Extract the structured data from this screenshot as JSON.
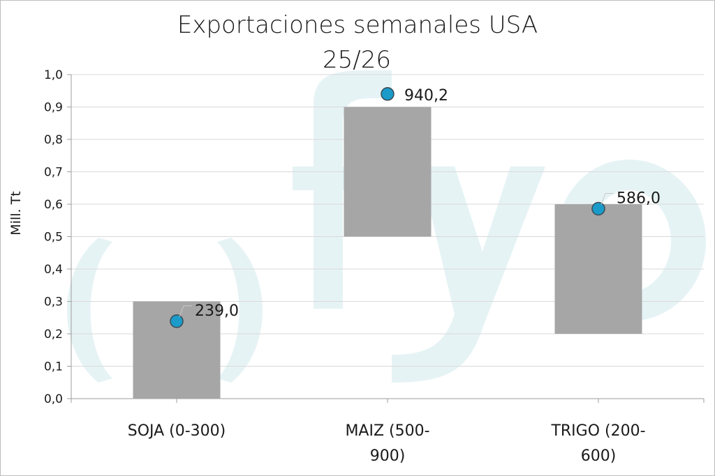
{
  "chart_data": {
    "type": "bar",
    "title": "Exportaciones semanales USA",
    "subtitle": "25/26",
    "ylabel": "Mill. Tt",
    "ylim": [
      0,
      1.0
    ],
    "yticks": [
      "0,0",
      "0,1",
      "0,2",
      "0,3",
      "0,4",
      "0,5",
      "0,6",
      "0,7",
      "0,8",
      "0,9",
      "1,0"
    ],
    "grid": true,
    "categories": [
      {
        "line1": "SOJA (0-300)",
        "line2": ""
      },
      {
        "line1": "MAIZ (500-",
        "line2": "900)"
      },
      {
        "line1": "TRIGO (200-",
        "line2": "600)"
      }
    ],
    "ranges": [
      {
        "low": 0.0,
        "high": 0.3
      },
      {
        "low": 0.5,
        "high": 0.9
      },
      {
        "low": 0.2,
        "high": 0.6
      }
    ],
    "actual": [
      {
        "value": 0.239,
        "label": "239,0"
      },
      {
        "value": 0.9402,
        "label": "940,2"
      },
      {
        "value": 0.586,
        "label": "586,0"
      }
    ],
    "colors": {
      "range_bar": "#a6a6a6",
      "marker_fill": "#1a9bc9",
      "marker_stroke": "#3a4a55",
      "grid": "#d9d9d9",
      "axis": "#9e9e9e",
      "watermark": "#e6f3f5"
    }
  }
}
